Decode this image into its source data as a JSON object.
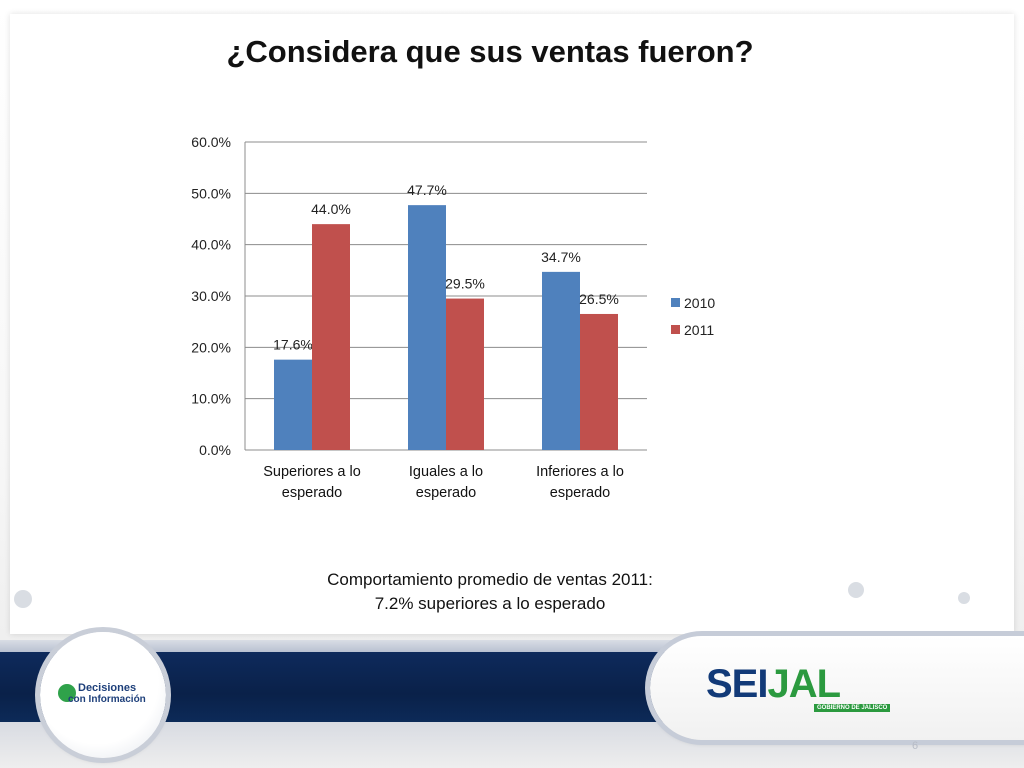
{
  "slide": {
    "title": "¿Considera que sus ventas fueron?",
    "note_line1": "Comportamiento promedio de ventas 2011:",
    "note_line2": "7.2% superiores a lo esperado",
    "page_number": "6",
    "logo_left_line1": "Decisiones",
    "logo_left_line2": "con Información",
    "logo_right_part1": "SEI",
    "logo_right_part2": "JAL",
    "logo_right_sub": "GOBIERNO DE JALISCO"
  },
  "colors": {
    "series_2010": "#4f81bd",
    "series_2011": "#c0504d",
    "grid": "#8c8c8c",
    "band": "#0c2a58"
  },
  "chart_data": {
    "type": "bar",
    "categories": [
      [
        "Superiores a lo",
        "esperado"
      ],
      [
        "Iguales a lo",
        "esperado"
      ],
      [
        "Inferiores a lo",
        "esperado"
      ]
    ],
    "series": [
      {
        "name": "2010",
        "values": [
          17.6,
          47.7,
          34.7
        ]
      },
      {
        "name": "2011",
        "values": [
          44.0,
          29.5,
          26.5
        ]
      }
    ],
    "data_labels": [
      [
        "17.6%",
        "47.7%",
        "34.7%"
      ],
      [
        "44.0%",
        "29.5%",
        "26.5%"
      ]
    ],
    "yticks": [
      "0.0%",
      "10.0%",
      "20.0%",
      "30.0%",
      "40.0%",
      "50.0%",
      "60.0%"
    ],
    "ylim": [
      0,
      60
    ],
    "grid": true,
    "legend_position": "right"
  }
}
